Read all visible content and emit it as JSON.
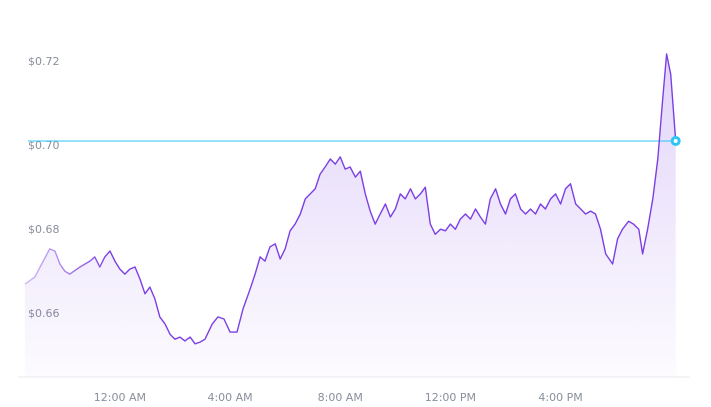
{
  "chart_data": {
    "type": "line",
    "x": [
      -3.45,
      -3.09,
      -2.84,
      -2.55,
      -2.36,
      -2.18,
      -2.0,
      -1.82,
      -1.45,
      -1.09,
      -0.91,
      -0.73,
      -0.55,
      -0.36,
      -0.18,
      0,
      0.18,
      0.36,
      0.55,
      0.73,
      0.91,
      1.09,
      1.27,
      1.45,
      1.64,
      1.82,
      2.0,
      2.18,
      2.36,
      2.55,
      2.73,
      2.91,
      3.09,
      3.35,
      3.56,
      3.78,
      4.0,
      4.25,
      4.47,
      4.73,
      4.91,
      5.09,
      5.27,
      5.45,
      5.64,
      5.82,
      6.0,
      6.18,
      6.36,
      6.55,
      6.73,
      6.91,
      7.09,
      7.27,
      7.45,
      7.64,
      7.82,
      8.0,
      8.18,
      8.36,
      8.55,
      8.73,
      8.91,
      9.09,
      9.27,
      9.45,
      9.64,
      9.82,
      10.0,
      10.18,
      10.36,
      10.55,
      10.73,
      10.91,
      11.09,
      11.27,
      11.45,
      11.64,
      11.82,
      12.0,
      12.18,
      12.36,
      12.55,
      12.73,
      12.91,
      13.09,
      13.27,
      13.45,
      13.64,
      13.82,
      14.0,
      14.18,
      14.36,
      14.55,
      14.73,
      14.91,
      15.09,
      15.27,
      15.45,
      15.64,
      15.82,
      16.0,
      16.18,
      16.36,
      16.55,
      16.73,
      16.91,
      17.09,
      17.27,
      17.45,
      17.64,
      17.89,
      18.07,
      18.25,
      18.47,
      18.65,
      18.84,
      18.98,
      19.16,
      19.35,
      19.53,
      19.71,
      19.85,
      20.0,
      20.18
    ],
    "series": [
      {
        "color": "#7b3fe4",
        "values": [
          0.6671,
          0.6688,
          0.6719,
          0.6755,
          0.675,
          0.6719,
          0.6702,
          0.6695,
          0.6712,
          0.6726,
          0.6736,
          0.6712,
          0.6736,
          0.675,
          0.6726,
          0.6707,
          0.6695,
          0.6707,
          0.6712,
          0.6683,
          0.6648,
          0.6664,
          0.6636,
          0.6593,
          0.6576,
          0.6552,
          0.654,
          0.6545,
          0.6536,
          0.6545,
          0.6529,
          0.6533,
          0.654,
          0.6576,
          0.6593,
          0.6588,
          0.6557,
          0.6557,
          0.6612,
          0.666,
          0.6695,
          0.6736,
          0.6726,
          0.676,
          0.6767,
          0.6731,
          0.6755,
          0.6798,
          0.6814,
          0.6838,
          0.6874,
          0.6886,
          0.6898,
          0.6933,
          0.695,
          0.6969,
          0.6957,
          0.6974,
          0.6945,
          0.695,
          0.6926,
          0.694,
          0.6886,
          0.6845,
          0.6814,
          0.6838,
          0.6862,
          0.6831,
          0.685,
          0.6886,
          0.6874,
          0.6898,
          0.6874,
          0.6886,
          0.6902,
          0.6814,
          0.679,
          0.6802,
          0.6798,
          0.6814,
          0.6802,
          0.6826,
          0.6838,
          0.6826,
          0.685,
          0.6831,
          0.6814,
          0.6874,
          0.6898,
          0.6862,
          0.6838,
          0.6874,
          0.6886,
          0.685,
          0.6838,
          0.685,
          0.6838,
          0.6862,
          0.685,
          0.6874,
          0.6886,
          0.6862,
          0.6898,
          0.691,
          0.6862,
          0.685,
          0.6838,
          0.6845,
          0.6838,
          0.6802,
          0.6743,
          0.6719,
          0.6779,
          0.6802,
          0.6821,
          0.6814,
          0.6802,
          0.6743,
          0.6802,
          0.6874,
          0.6969,
          0.7112,
          0.7219,
          0.7171,
          0.7012
        ]
      }
    ],
    "xlim": [
      -3.7,
      20.7
    ],
    "xticks": [
      {
        "value": 0,
        "label": "12:00 AM"
      },
      {
        "value": 4,
        "label": "4:00 AM"
      },
      {
        "value": 8,
        "label": "8:00 AM"
      },
      {
        "value": 12,
        "label": "12:00 PM"
      },
      {
        "value": 16,
        "label": "4:00 PM"
      }
    ],
    "ylim": [
      0.645,
      0.73
    ],
    "yticks": [
      {
        "value": 0.66,
        "label": "$0.66"
      },
      {
        "value": 0.68,
        "label": "$0.68"
      },
      {
        "value": 0.7,
        "label": "$0.70"
      },
      {
        "value": 0.72,
        "label": "$0.72"
      }
    ],
    "marker_color": "#2ec5f5"
  }
}
